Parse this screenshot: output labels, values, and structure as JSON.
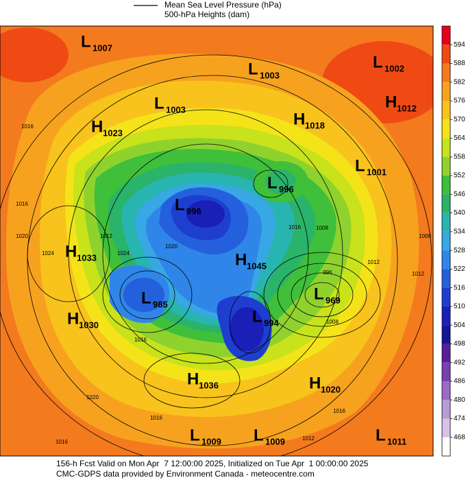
{
  "legend": {
    "line_label": "Mean Sea Level Pressure (hPa)",
    "fill_label": "500-hPa Heights (dam)"
  },
  "pressure_centers": [
    {
      "type": "L",
      "value": 1007
    },
    {
      "type": "L",
      "value": 1003
    },
    {
      "type": "L",
      "value": 1002
    },
    {
      "type": "H",
      "value": 1012
    },
    {
      "type": "L",
      "value": 1003
    },
    {
      "type": "H",
      "value": 1018
    },
    {
      "type": "H",
      "value": 1023
    },
    {
      "type": "L",
      "value": 1001
    },
    {
      "type": "L",
      "value": 996
    },
    {
      "type": "L",
      "value": 996
    },
    {
      "type": "H",
      "value": 1033
    },
    {
      "type": "H",
      "value": 1045
    },
    {
      "type": "L",
      "value": 969
    },
    {
      "type": "L",
      "value": 985
    },
    {
      "type": "L",
      "value": 994
    },
    {
      "type": "H",
      "value": 1030
    },
    {
      "type": "H",
      "value": 1036
    },
    {
      "type": "H",
      "value": 1020
    },
    {
      "type": "L",
      "value": 1009
    },
    {
      "type": "L",
      "value": 1009
    },
    {
      "type": "L",
      "value": 1011
    }
  ],
  "isobar_labels": [
    1016,
    1016,
    1020,
    1024,
    1024,
    1012,
    1020,
    1016,
    1008,
    996,
    1012,
    1012,
    1008,
    1008,
    1016,
    1016,
    1012,
    1020,
    1016,
    1016
  ],
  "colorbar": {
    "ticks": [
      594,
      588,
      582,
      576,
      570,
      564,
      558,
      552,
      546,
      540,
      534,
      528,
      522,
      516,
      510,
      504,
      498,
      492,
      486,
      480,
      474,
      468
    ],
    "colors": [
      "#e8001a",
      "#f04a14",
      "#f47a1e",
      "#f7a21f",
      "#f8c31c",
      "#f5e31a",
      "#c8e21b",
      "#8fd22e",
      "#3fbf3a",
      "#2ab36a",
      "#28b5b0",
      "#37a8e3",
      "#2f86e8",
      "#2460dc",
      "#1e3ecf",
      "#1a1fb8",
      "#151595",
      "#5a1e9a",
      "#7a3fb0",
      "#9a6cc4",
      "#b99bd6",
      "#d5c2e6",
      "#ffffff"
    ]
  },
  "footer": {
    "line1": "156-h Fcst Valid on Mon Apr  7 12:00:00 2025, Initialized on Tue Apr  1 00:00:00 2025",
    "line2": "CMC-GDPS data provided by Environment Canada - meteocentre.com"
  }
}
